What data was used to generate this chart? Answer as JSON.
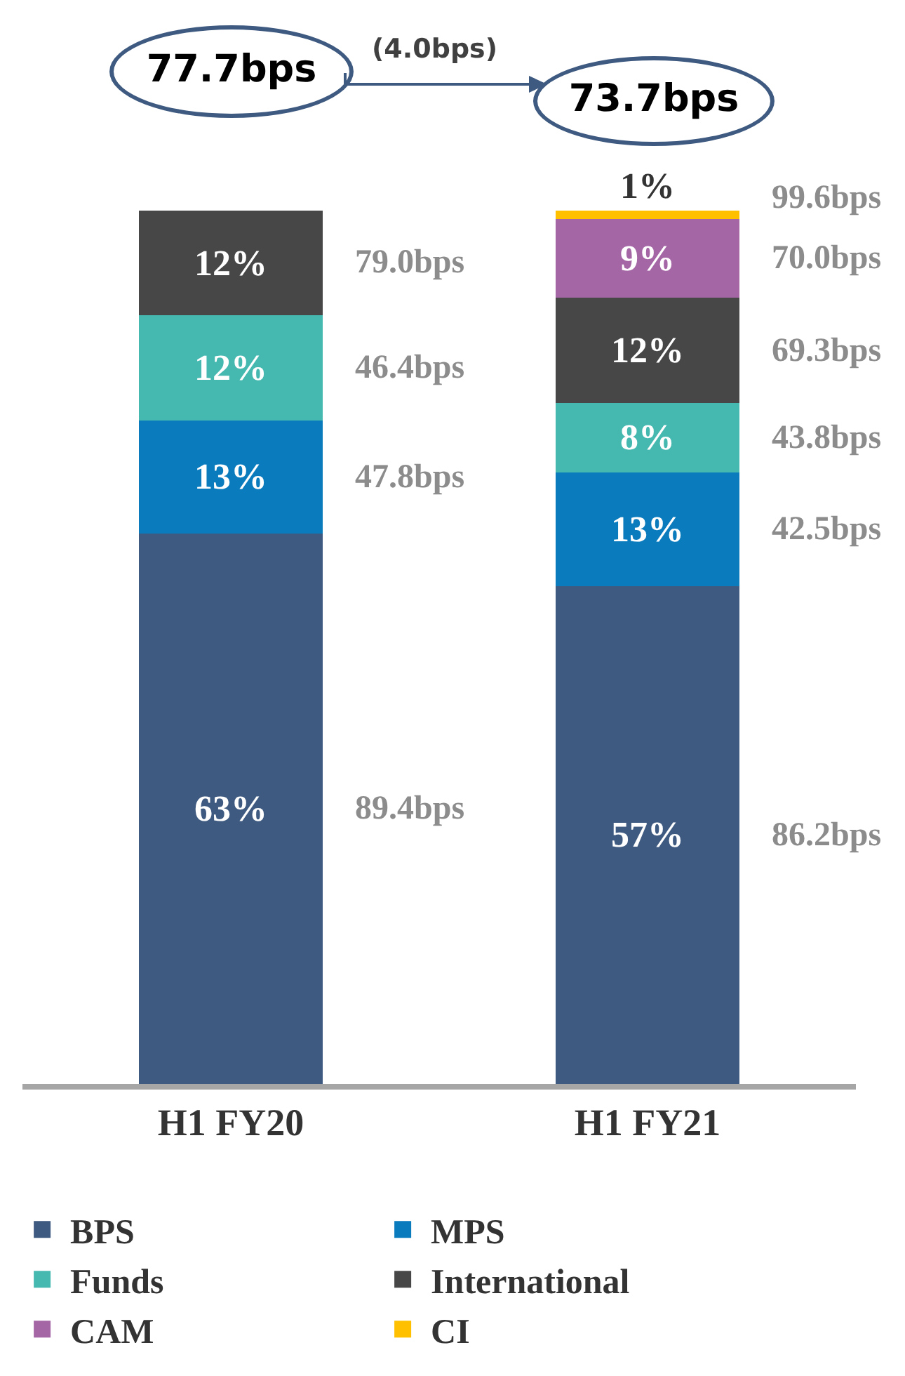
{
  "chart_data": {
    "type": "bar",
    "stacked": true,
    "legend": "bottom",
    "categories": [
      "H1 FY20",
      "H1 FY21"
    ],
    "series": [
      {
        "name": "BPS",
        "color": "#3f5a80",
        "values": [
          63,
          57
        ],
        "value_labels": [
          "63%",
          "57%"
        ]
      },
      {
        "name": "MPS",
        "color": "#0a7bbd",
        "values": [
          13,
          13
        ],
        "value_labels": [
          "13%",
          "13%"
        ]
      },
      {
        "name": "Funds",
        "color": "#45b8b0",
        "values": [
          12,
          8
        ],
        "value_labels": [
          "12%",
          "8%"
        ]
      },
      {
        "name": "International",
        "color": "#474747",
        "values": [
          12,
          12
        ],
        "value_labels": [
          "12%",
          "12%"
        ]
      },
      {
        "name": "CAM",
        "color": "#a566a6",
        "values": [
          null,
          9
        ],
        "value_labels": [
          null,
          "9%"
        ]
      },
      {
        "name": "CI",
        "color": "#ffc000",
        "values": [
          null,
          1
        ],
        "value_labels": [
          null,
          "1%"
        ]
      }
    ],
    "annotations": [
      "77.7bps",
      "(4.0bps)",
      "73.7bps",
      "89.4bps",
      "47.8bps",
      "46.4bps",
      "79.0bps",
      "86.2bps",
      "42.5bps",
      "43.8bps",
      "69.3bps",
      "70.0bps",
      "99.6bps"
    ]
  }
}
